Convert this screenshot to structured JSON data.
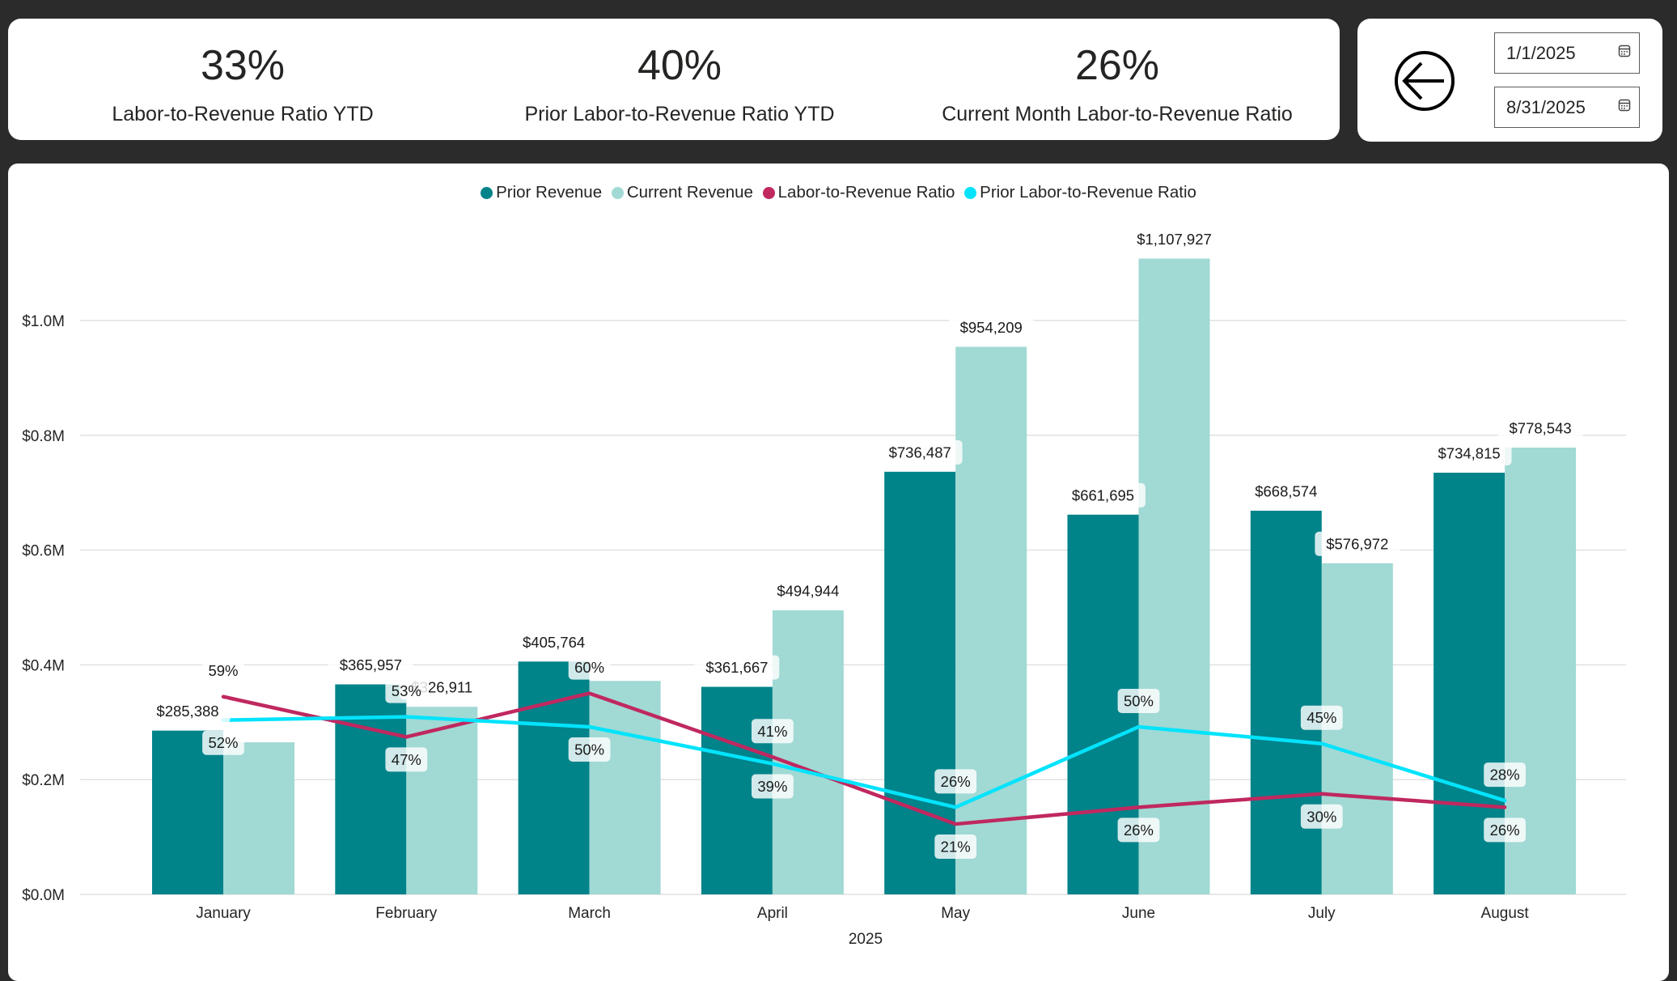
{
  "kpis": [
    {
      "value": "33%",
      "label": "Labor-to-Revenue Ratio YTD"
    },
    {
      "value": "40%",
      "label": "Prior Labor-to-Revenue Ratio YTD"
    },
    {
      "value": "26%",
      "label": "Current Month Labor-to-Revenue Ratio"
    }
  ],
  "date_filter": {
    "start": "1/1/2025",
    "end": "8/31/2025",
    "back_icon": "arrow-left-circle-icon",
    "calendar_icon": "calendar-icon"
  },
  "colors": {
    "background": "#2b2b2b",
    "prior_revenue": "#01838a",
    "current_revenue": "#a1d9d4",
    "labor_ratio": "#c0285f",
    "prior_labor_ratio": "#03e3fc"
  },
  "chart_data": {
    "type": "bar",
    "title": "",
    "xlabel": "2025",
    "ylabel": "",
    "categories": [
      "January",
      "February",
      "March",
      "April",
      "May",
      "June",
      "July",
      "August"
    ],
    "ylim": [
      0,
      1200000
    ],
    "y_ticks": [
      0,
      200000,
      400000,
      600000,
      800000,
      1000000
    ],
    "y_tick_labels": [
      "$0.0M",
      "$0.2M",
      "$0.4M",
      "$0.6M",
      "$0.8M",
      "$1.0M"
    ],
    "y2lim": [
      0,
      100
    ],
    "grid": true,
    "legend_position": "top-center",
    "series": [
      {
        "name": "Prior Revenue",
        "type": "bar",
        "values": [
          285388,
          365957,
          405764,
          361667,
          736487,
          661695,
          668574,
          734815
        ],
        "labels": [
          "$285,388",
          "$365,957",
          "$405,764",
          "$361,667",
          "$736,487",
          "$661,695",
          "$668,574",
          "$734,815"
        ]
      },
      {
        "name": "Current Revenue",
        "type": "bar",
        "values": [
          265000,
          326911,
          372000,
          494944,
          954209,
          1107927,
          576972,
          778543
        ],
        "labels": [
          "",
          "$326,911",
          "",
          "$494,944",
          "$954,209",
          "$1,107,927",
          "$576,972",
          "$778,543"
        ]
      },
      {
        "name": "Labor-to-Revenue Ratio",
        "type": "line",
        "axis": "secondary",
        "values": [
          59,
          47,
          60,
          41,
          21,
          26,
          30,
          26
        ],
        "labels": [
          "59%",
          "47%",
          "60%",
          "41%",
          "21%",
          "26%",
          "30%",
          "26%"
        ]
      },
      {
        "name": "Prior Labor-to-Revenue Ratio",
        "type": "line",
        "axis": "secondary",
        "values": [
          52,
          53,
          50,
          39,
          26,
          50,
          45,
          28
        ],
        "labels": [
          "52%",
          "53%",
          "50%",
          "39%",
          "26%",
          "50%",
          "45%",
          "28%"
        ]
      }
    ]
  }
}
